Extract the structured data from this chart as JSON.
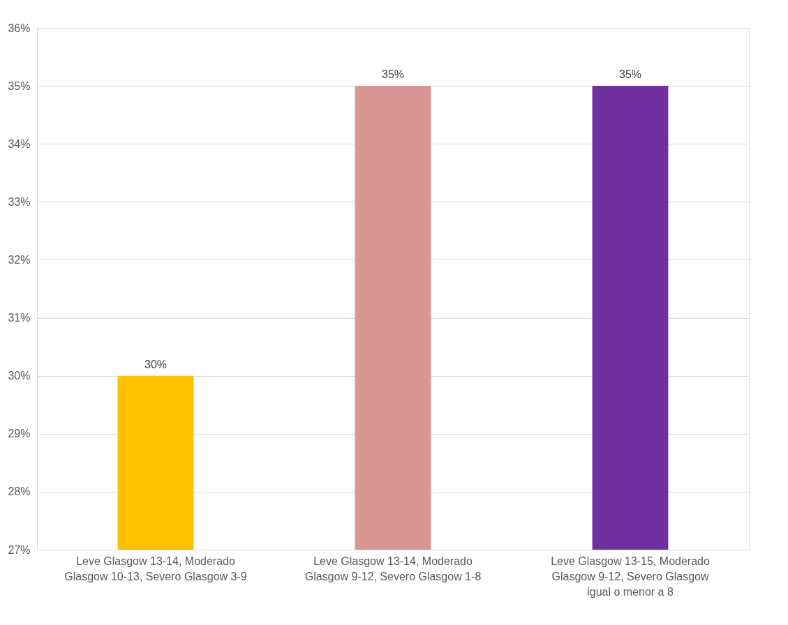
{
  "chart_data": {
    "type": "bar",
    "categories": [
      "Leve Glasgow 13-14, Moderado Glasgow 10-13, Severo Glasgow 3-9",
      "Leve Glasgow 13-14, Moderado Glasgow 9-12, Severo Glasgow 1-8",
      "Leve Glasgow 13-15, Moderado Glasgow 9-12, Severo Glasgow igual o menor a 8"
    ],
    "values": [
      30,
      35,
      35
    ],
    "colors": [
      "#ffc000",
      "#d99694",
      "#7030a0"
    ],
    "value_labels": [
      "30%",
      "35%",
      "35%"
    ],
    "ylim": [
      27,
      36
    ],
    "yticks": [
      {
        "value": 27,
        "label": "27%"
      },
      {
        "value": 28,
        "label": "28%"
      },
      {
        "value": 29,
        "label": "29%"
      },
      {
        "value": 30,
        "label": "30%"
      },
      {
        "value": 31,
        "label": "31%"
      },
      {
        "value": 32,
        "label": "32%"
      },
      {
        "value": 33,
        "label": "33%"
      },
      {
        "value": 34,
        "label": "34%"
      },
      {
        "value": 35,
        "label": "35%"
      },
      {
        "value": 36,
        "label": "36%"
      }
    ],
    "grid": "y"
  }
}
